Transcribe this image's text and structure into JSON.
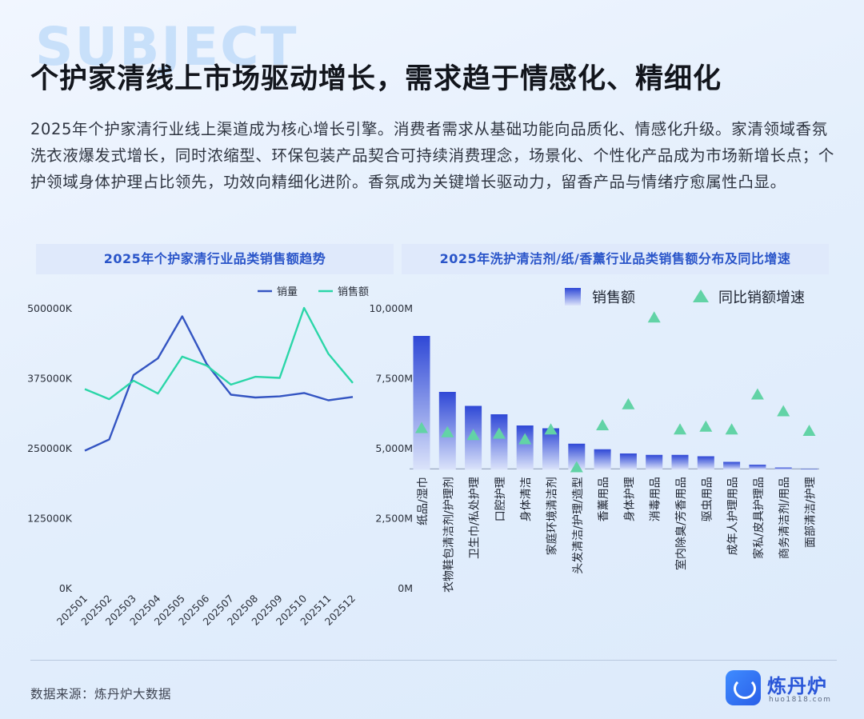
{
  "watermark": "SUBJECT",
  "title": "个护家清线上市场驱动增长，需求趋于情感化、精细化",
  "intro": "2025年个护家清行业线上渠道成为核心增长引擎。消费者需求从基础功能向品质化、情感化升级。家清领域香氛洗衣液爆发式增长，同时浓缩型、环保包装产品契合可持续消费理念，场景化、个性化产品成为市场新增长点；个护领域身体护理占比领先，功效向精细化进阶。香氛成为关键增长驱动力，留香产品与情绪疗愈属性凸显。",
  "colors": {
    "volume_line": "#3455c2",
    "sales_line": "#2bd6a8",
    "bar_top": "#2f48d6",
    "bar_bottom": "#dbe3fa",
    "triangle": "#62d3a6"
  },
  "chart_data": [
    {
      "type": "line",
      "title": "2025年个护家清行业品类销售额趋势",
      "x": [
        "202501",
        "202502",
        "202503",
        "202504",
        "202505",
        "202506",
        "202507",
        "202508",
        "202509",
        "202510",
        "202511",
        "202512"
      ],
      "y_ticks": [
        "0K",
        "125000K",
        "250000K",
        "375000K",
        "500000K"
      ],
      "ylim": [
        0,
        500000
      ],
      "legend_position": "top-right",
      "series": [
        {
          "name": "销量",
          "values": [
            245000,
            265000,
            380000,
            410000,
            485000,
            400000,
            345000,
            340000,
            342000,
            348000,
            335000,
            341000
          ]
        },
        {
          "name": "销售额",
          "values": [
            355000,
            337000,
            370000,
            347000,
            413000,
            397000,
            363000,
            377000,
            375000,
            500000,
            418000,
            366000
          ]
        }
      ]
    },
    {
      "type": "bar",
      "title": "2025年洗护清洁剂/纸/香薰行业品类销售额分布及同比增速",
      "categories": [
        "纸品/湿巾",
        "衣物鞋包清洁剂/护理剂",
        "卫生巾/私处护理",
        "口腔护理",
        "身体清洁",
        "家庭环境清洁剂",
        "头发清洁/护理/造型",
        "香薰用品",
        "身体护理",
        "消毒用品",
        "室内除臭/芳香用品",
        "驱虫用品",
        "成年人护理用品",
        "家私/皮具护理品",
        "商务清洁剂/用品",
        "面部清洁/护理"
      ],
      "y_ticks": [
        "0M",
        "2,500M",
        "5,000M",
        "7,500M",
        "10,000M"
      ],
      "ylim": [
        0,
        10000
      ],
      "legend_position": "top-right",
      "series": [
        {
          "name": "销售额",
          "values": [
            9000,
            7000,
            6500,
            6200,
            5800,
            5700,
            5150,
            4950,
            4800,
            4750,
            4750,
            4700,
            4500,
            4400,
            4300,
            4250
          ]
        },
        {
          "name": "同比销额增速",
          "values": [
            5700,
            5550,
            5450,
            5500,
            5300,
            5650,
            4300,
            5800,
            6550,
            9650,
            5650,
            5750,
            5650,
            6900,
            6300,
            5600
          ]
        }
      ]
    }
  ],
  "footer": {
    "source": "数据来源：炼丹炉大数据",
    "brand_name": "炼丹炉",
    "brand_url": "huo1818.com"
  }
}
